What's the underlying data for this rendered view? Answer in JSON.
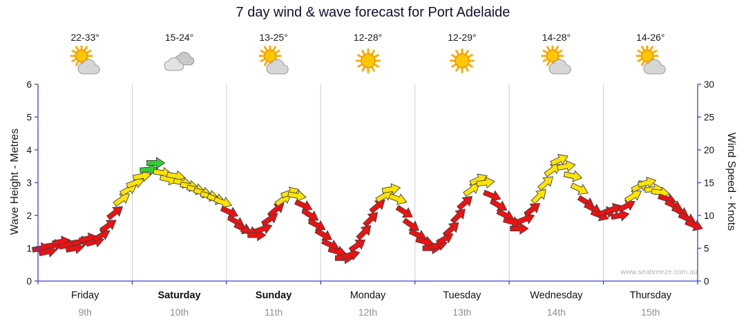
{
  "title": "7 day wind & wave forecast for Port Adelaide",
  "watermark": "www.seabreeze.com.au",
  "left_axis": {
    "label": "Wave Height - Metres",
    "min": 0,
    "max": 6,
    "ticks": [
      0,
      1,
      2,
      3,
      4,
      5,
      6
    ]
  },
  "right_axis": {
    "label": "Wind Speed - Knots",
    "min": 0,
    "max": 30,
    "ticks": [
      0,
      5,
      10,
      15,
      20,
      25,
      30
    ]
  },
  "days": [
    {
      "name": "Friday",
      "date": "9th",
      "temp": "22-33°",
      "icon": "sun-cloud",
      "bold": false
    },
    {
      "name": "Saturday",
      "date": "10th",
      "temp": "15-24°",
      "icon": "clouds",
      "bold": true
    },
    {
      "name": "Sunday",
      "date": "11th",
      "temp": "13-25°",
      "icon": "sun-cloud",
      "bold": true
    },
    {
      "name": "Monday",
      "date": "12th",
      "temp": "12-28°",
      "icon": "sun",
      "bold": false
    },
    {
      "name": "Tuesday",
      "date": "13th",
      "temp": "12-29°",
      "icon": "sun",
      "bold": false
    },
    {
      "name": "Wednesday",
      "date": "14th",
      "temp": "14-28°",
      "icon": "sun-cloud",
      "bold": false
    },
    {
      "name": "Thursday",
      "date": "15th",
      "temp": "14-26°",
      "icon": "sun-cloud",
      "bold": false
    }
  ],
  "chart_data": {
    "type": "wind-arrow-timeseries",
    "x_unit": "day",
    "left_range": [
      0,
      6
    ],
    "right_range": [
      0,
      30
    ],
    "points_per_day": 14,
    "wind_speed_knots": [
      [
        5,
        4.5,
        5.5,
        6,
        5.5,
        5,
        6,
        6.5,
        6,
        7,
        8.5,
        10.5,
        12.5,
        14
      ],
      [
        15,
        16,
        17,
        18,
        16.5,
        15.5,
        16,
        15,
        14.5,
        14,
        13.5,
        13,
        12.5,
        12
      ],
      [
        10.5,
        9,
        8,
        7.5,
        7,
        8,
        9.5,
        11,
        12.5,
        13.5,
        13,
        11.5,
        10,
        8.5
      ],
      [
        7,
        5.5,
        4.5,
        3.5,
        4,
        5.5,
        7.5,
        9.5,
        11.5,
        13,
        14,
        12.5,
        10.5,
        8.5
      ],
      [
        7,
        6,
        5,
        5.5,
        6.5,
        8,
        10,
        12,
        14,
        15.5,
        15,
        13,
        11.5,
        10
      ],
      [
        9,
        8,
        9.5,
        11,
        13,
        15,
        17,
        18.5,
        17.5,
        16,
        14,
        12,
        11,
        10
      ],
      [
        10.5,
        11,
        10,
        11.5,
        13,
        14.5,
        15,
        14,
        13.5,
        12.5,
        11.5,
        10.5,
        9.5,
        8.5
      ]
    ],
    "wind_dir_deg": [
      [
        -10,
        -12,
        -8,
        -10,
        -12,
        -10,
        -8,
        -12,
        -15,
        -30,
        -35,
        -38,
        -35,
        -30
      ],
      [
        -20,
        -10,
        -5,
        0,
        8,
        12,
        10,
        12,
        10,
        12,
        15,
        12,
        18,
        20
      ],
      [
        25,
        30,
        25,
        15,
        0,
        -20,
        -35,
        -40,
        -35,
        -20,
        10,
        25,
        32,
        28
      ],
      [
        30,
        25,
        15,
        0,
        -15,
        -35,
        -45,
        -45,
        -40,
        -30,
        -10,
        20,
        32,
        35
      ],
      [
        25,
        15,
        0,
        -15,
        -30,
        -42,
        -45,
        -42,
        -35,
        -25,
        -8,
        22,
        30,
        26
      ],
      [
        15,
        0,
        -22,
        -38,
        -45,
        -42,
        -35,
        -25,
        -10,
        12,
        26,
        32,
        28,
        22
      ],
      [
        -12,
        -20,
        -10,
        -28,
        -32,
        -26,
        -15,
        -5,
        8,
        18,
        26,
        30,
        26,
        22
      ]
    ],
    "arrow_colors": [
      "rrrrrrrrrrrryy",
      "yyggyyyyyyyyyy",
      "rrrrrrrryyyrrr",
      "rrrrrrrrryyyrr",
      "rrrrrrrryyyrrr",
      "rrrryyyyyyyrrr",
      "rrrryyyyyrrrrr"
    ],
    "color_map": {
      "r": "#ee1111",
      "y": "#ffe400",
      "g": "#33cc33"
    },
    "axis_color": "#4040cc",
    "grid_color": "#cfcfcf"
  }
}
